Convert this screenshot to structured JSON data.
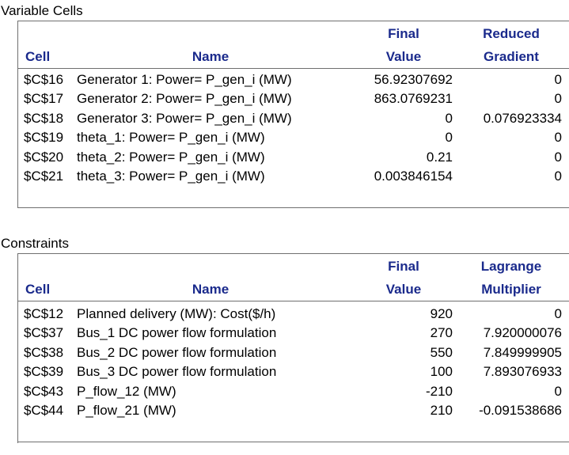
{
  "variable_cells": {
    "title": "Variable Cells",
    "headers": {
      "cell": "Cell",
      "name": "Name",
      "final_line1": "Final",
      "final_line2": "Value",
      "grad_line1": "Reduced",
      "grad_line2": "Gradient"
    },
    "rows": [
      {
        "cell": "$C$16",
        "name": "Generator 1: Power= P_gen_i (MW)",
        "final": "56.92307692",
        "gradient": "0"
      },
      {
        "cell": "$C$17",
        "name": "Generator 2: Power= P_gen_i (MW)",
        "final": "863.0769231",
        "gradient": "0"
      },
      {
        "cell": "$C$18",
        "name": "Generator 3: Power= P_gen_i (MW)",
        "final": "0",
        "gradient": "0.076923334"
      },
      {
        "cell": "$C$19",
        "name": "theta_1: Power= P_gen_i (MW)",
        "final": "0",
        "gradient": "0"
      },
      {
        "cell": "$C$20",
        "name": "theta_2: Power= P_gen_i (MW)",
        "final": "0.21",
        "gradient": "0"
      },
      {
        "cell": "$C$21",
        "name": "theta_3: Power= P_gen_i (MW)",
        "final": "0.003846154",
        "gradient": "0"
      }
    ]
  },
  "constraints": {
    "title": "Constraints",
    "headers": {
      "cell": "Cell",
      "name": "Name",
      "final_line1": "Final",
      "final_line2": "Value",
      "grad_line1": "Lagrange",
      "grad_line2": "Multiplier"
    },
    "rows": [
      {
        "cell": "$C$12",
        "name": "Planned delivery (MW): Cost($/h)",
        "final": "920",
        "gradient": "0"
      },
      {
        "cell": "$C$37",
        "name": "Bus_1 DC power flow formulation",
        "final": "270",
        "gradient": "7.920000076"
      },
      {
        "cell": "$C$38",
        "name": "Bus_2 DC power flow formulation",
        "final": "550",
        "gradient": "7.849999905"
      },
      {
        "cell": "$C$39",
        "name": "Bus_3 DC power flow formulation",
        "final": "100",
        "gradient": "7.893076933"
      },
      {
        "cell": "$C$43",
        "name": "P_flow_12 (MW)",
        "final": "-210",
        "gradient": "0"
      },
      {
        "cell": "$C$44",
        "name": "P_flow_21 (MW)",
        "final": "210",
        "gradient": "-0.091538686"
      }
    ]
  },
  "colors": {
    "header_text": "#1a2a8c",
    "rule": "#6f6f6f"
  }
}
